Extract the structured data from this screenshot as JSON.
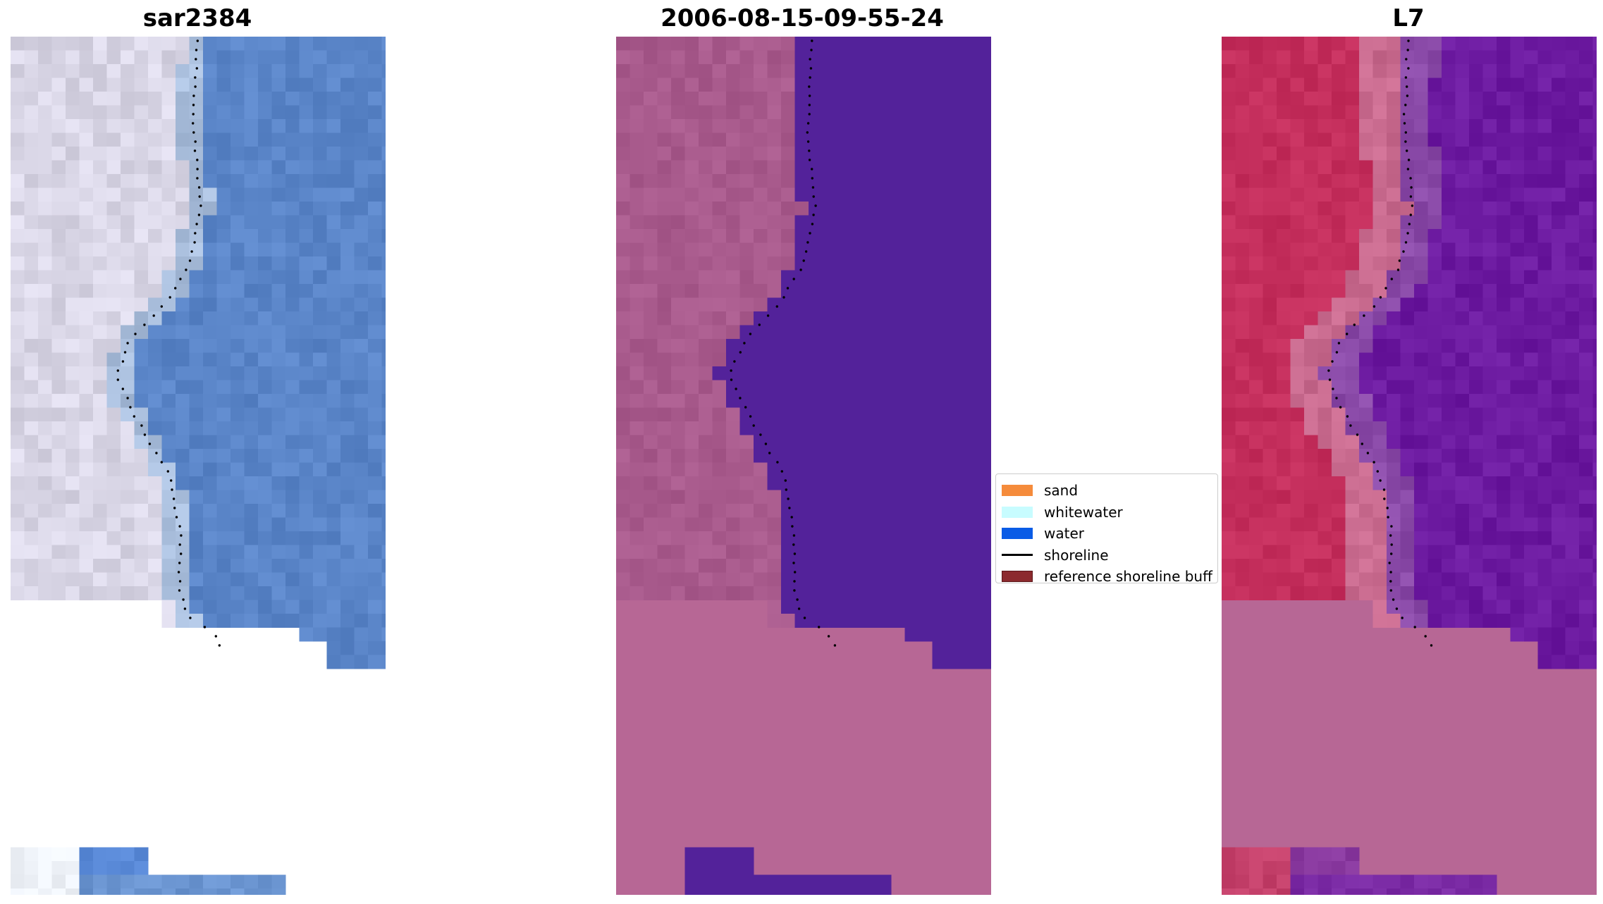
{
  "panels": [
    {
      "title": "sar2384",
      "style": "rgb"
    },
    {
      "title": "2006-08-15-09-55-24",
      "style": "classified"
    },
    {
      "title": "L7",
      "style": "ndwi"
    }
  ],
  "legend": {
    "items": [
      {
        "label": "sand",
        "type": "patch",
        "color": "#f58b3b"
      },
      {
        "label": "whitewater",
        "type": "patch",
        "color": "#c8fcff"
      },
      {
        "label": "water",
        "type": "patch",
        "color": "#0a5ce6"
      },
      {
        "label": "shoreline",
        "type": "line",
        "color": "#000000"
      },
      {
        "label": "reference shoreline buff",
        "type": "patch",
        "color": "#8c2a2e"
      }
    ]
  },
  "colors": {
    "rgb_land": "#d9d6e6",
    "rgb_water": "#5a85c8",
    "classified_land": "#a85a8c",
    "classified_water": "#53229a",
    "classified_fill": "#b76795",
    "ndwi_land": "#c42e5c",
    "ndwi_water": "#6c1aa0",
    "ndwi_fill": "#b76795",
    "shoreline_dots": "#000000"
  }
}
